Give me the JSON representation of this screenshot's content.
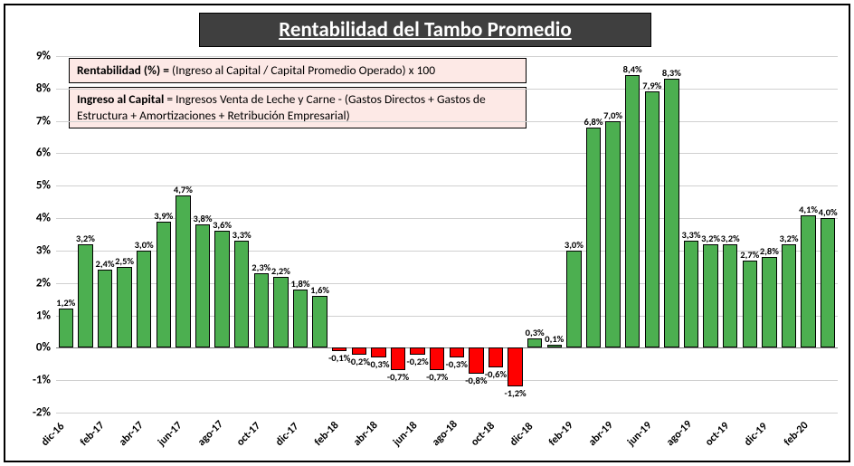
{
  "title": "Rentabilidad del Tambo Promedio",
  "info1": "<b>Rentabilidad (%) =</b> (Ingreso al Capital / Capital Promedio Operado) x 100",
  "info2": "<b>Ingreso al Capital</b> = Ingresos Venta de Leche y Carne  -  (Gastos Directos + Gastos de Estructura  + Amortizaciones  + Retribución Empresarial)",
  "chart": {
    "type": "bar",
    "ylim": [
      -2,
      9
    ],
    "ytick_step": 1,
    "pos_color": "#4caf50",
    "neg_color": "#ff0000",
    "border_color": "#000000",
    "grid_color": "#d0d0d0",
    "bg_color": "#ffffff",
    "title_fontsize": 23,
    "tick_fontsize": 13,
    "label_fontsize": 10.5,
    "bar_width_ratio": 0.76,
    "xlabels": [
      "dic-16",
      "",
      "feb-17",
      "",
      "abr-17",
      "",
      "jun-17",
      "",
      "ago-17",
      "",
      "oct-17",
      "",
      "dic-17",
      "",
      "feb-18",
      "",
      "abr-18",
      "",
      "jun-18",
      "",
      "ago-18",
      "",
      "oct-18",
      "",
      "dic-18",
      "",
      "feb-19",
      "",
      "abr-19",
      "",
      "jun-19",
      "",
      "ago-19",
      "",
      "oct-19",
      "",
      "dic-19",
      "",
      "feb-20",
      ""
    ],
    "values": [
      1.2,
      3.2,
      2.4,
      2.5,
      3.0,
      3.9,
      4.7,
      3.8,
      3.6,
      3.3,
      2.3,
      2.2,
      1.8,
      1.6,
      -0.1,
      -0.2,
      -0.3,
      -0.7,
      -0.2,
      -0.7,
      -0.3,
      -0.8,
      -0.6,
      -1.2,
      0.3,
      0.1,
      3.0,
      6.8,
      7.0,
      8.4,
      7.9,
      8.3,
      3.3,
      3.2,
      3.2,
      2.7,
      2.8,
      3.2,
      4.1,
      4.0
    ],
    "value_labels": [
      "1,2%",
      "3,2%",
      "2,4%",
      "2,5%",
      "3,0%",
      "3,9%",
      "4,7%",
      "3,8%",
      "3,6%",
      "3,3%",
      "2,3%",
      "2,2%",
      "1,8%",
      "1,6%",
      "-0,1%",
      "-0,2%",
      "-0,3%",
      "-0,7%",
      "-0,2%",
      "-0,7%",
      "-0,3%",
      "-0,8%",
      "-0,6%",
      "-1,2%",
      "0,3%",
      "0,1%",
      "3,0%",
      "6,8%",
      "7,0%",
      "8,4%",
      "7,9%",
      "8,3%",
      "3,3%",
      "3,2%",
      "3,2%",
      "2,7%",
      "2,8%",
      "3,2%",
      "4,1%",
      "4,0%"
    ]
  }
}
